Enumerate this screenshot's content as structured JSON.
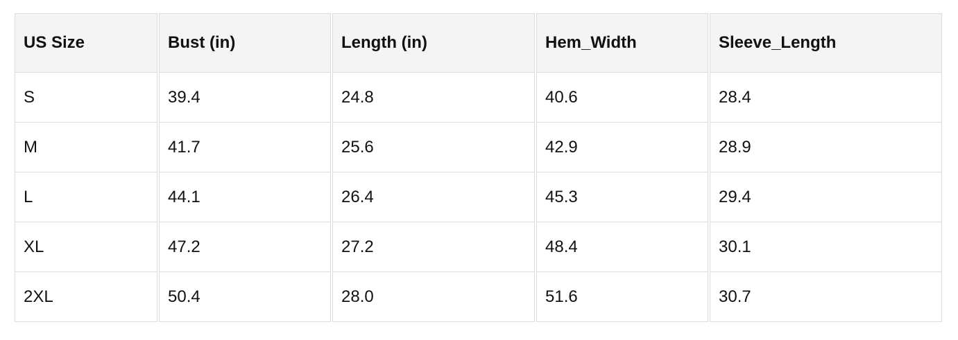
{
  "table": {
    "headers": [
      "US Size",
      "Bust (in)",
      "Length (in)",
      "Hem_Width",
      "Sleeve_Length"
    ],
    "rows": [
      [
        "S",
        "39.4",
        "24.8",
        "40.6",
        "28.4"
      ],
      [
        "M",
        "41.7",
        "25.6",
        "42.9",
        "28.9"
      ],
      [
        "L",
        "44.1",
        "26.4",
        "45.3",
        "29.4"
      ],
      [
        "XL",
        "47.2",
        "27.2",
        "48.4",
        "30.1"
      ],
      [
        "2XL",
        "50.4",
        "28.0",
        "51.6",
        "30.7"
      ]
    ]
  }
}
